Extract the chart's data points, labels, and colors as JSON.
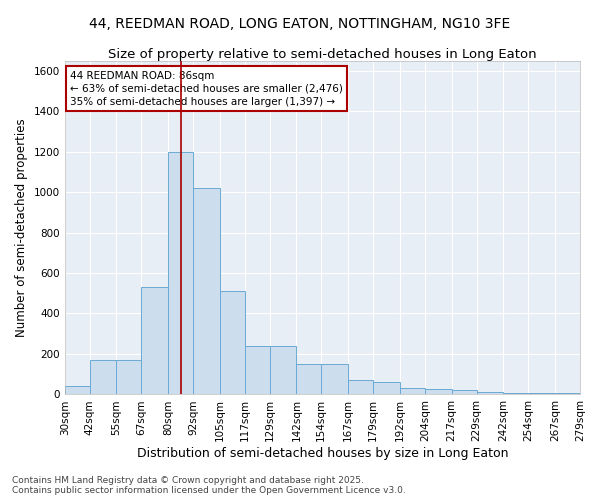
{
  "title1": "44, REEDMAN ROAD, LONG EATON, NOTTINGHAM, NG10 3FE",
  "title2": "Size of property relative to semi-detached houses in Long Eaton",
  "xlabel": "Distribution of semi-detached houses by size in Long Eaton",
  "ylabel": "Number of semi-detached properties",
  "bar_color": "#ccdded",
  "bar_edge_color": "#6aaad4",
  "bg_color": "#e8eef5",
  "grid_color": "white",
  "annotation_box_color": "#aa0000",
  "annotation_text": "44 REEDMAN ROAD: 86sqm\n← 63% of semi-detached houses are smaller (2,476)\n35% of semi-detached houses are larger (1,397) →",
  "property_line_x": 86,
  "bins": [
    30,
    42,
    55,
    67,
    80,
    92,
    105,
    117,
    129,
    142,
    154,
    167,
    179,
    192,
    204,
    217,
    229,
    242,
    254,
    267,
    279
  ],
  "bin_labels": [
    "30sqm",
    "42sqm",
    "55sqm",
    "67sqm",
    "80sqm",
    "92sqm",
    "105sqm",
    "117sqm",
    "129sqm",
    "142sqm",
    "154sqm",
    "167sqm",
    "179sqm",
    "192sqm",
    "204sqm",
    "217sqm",
    "229sqm",
    "242sqm",
    "254sqm",
    "267sqm",
    "279sqm"
  ],
  "counts": [
    40,
    170,
    170,
    530,
    1200,
    1020,
    510,
    240,
    240,
    150,
    150,
    70,
    60,
    30,
    25,
    20,
    10,
    5,
    5,
    5
  ],
  "ylim": [
    0,
    1650
  ],
  "yticks": [
    0,
    200,
    400,
    600,
    800,
    1000,
    1200,
    1400,
    1600
  ],
  "footer": "Contains HM Land Registry data © Crown copyright and database right 2025.\nContains public sector information licensed under the Open Government Licence v3.0.",
  "title_fontsize": 10,
  "subtitle_fontsize": 9.5,
  "axis_label_fontsize": 8.5,
  "tick_fontsize": 7.5,
  "footer_fontsize": 6.5,
  "annot_fontsize": 7.5
}
